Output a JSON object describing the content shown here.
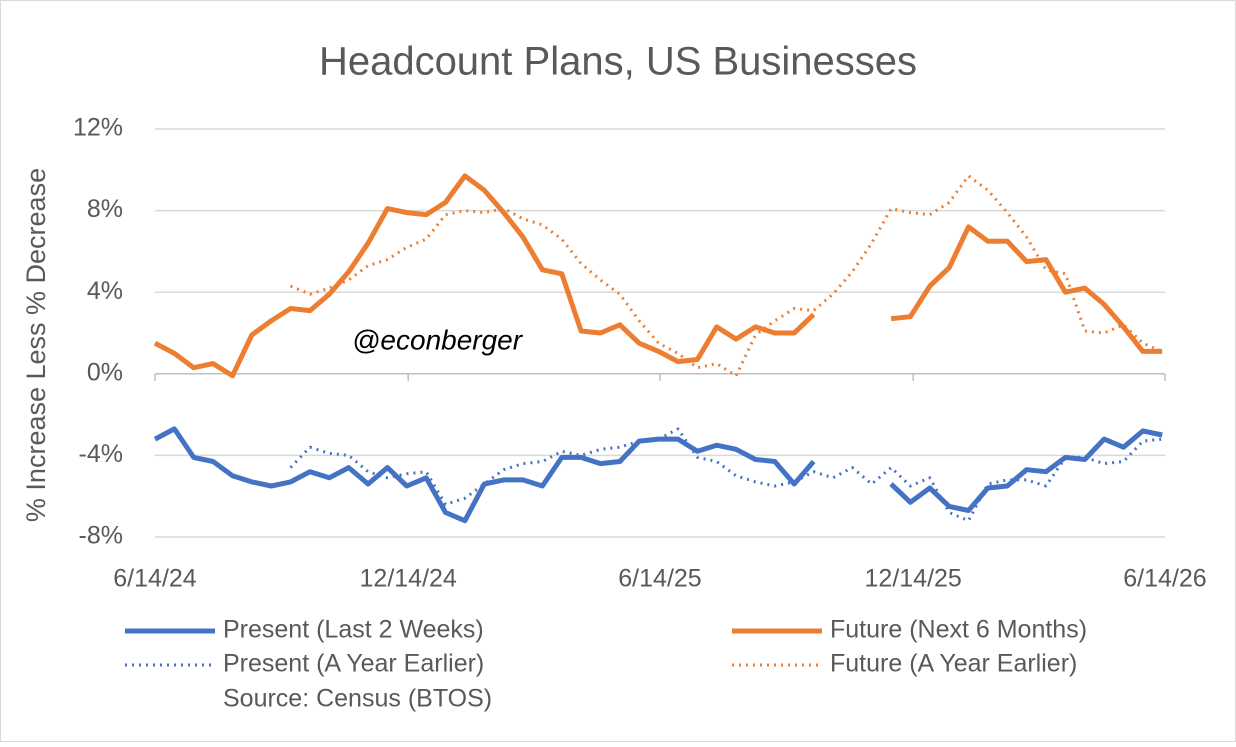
{
  "chart_data": {
    "type": "line",
    "title": "Headcount Plans, US Businesses",
    "y_label": "% Increase Less % Decrease",
    "annotation": "@econberger",
    "source": "Source: Census (BTOS)",
    "ylim": [
      -8,
      12
    ],
    "yticks": [
      {
        "value": -8,
        "label": "-8%"
      },
      {
        "value": -4,
        "label": "-4%"
      },
      {
        "value": 0,
        "label": "0%"
      },
      {
        "value": 4,
        "label": "4%"
      },
      {
        "value": 8,
        "label": "8%"
      },
      {
        "value": 12,
        "label": "12%"
      }
    ],
    "xlim": [
      "2024-06-14",
      "2026-06-14"
    ],
    "xticks": [
      {
        "value": "2024-06-14",
        "label": "6/14/24"
      },
      {
        "value": "2024-12-14",
        "label": "12/14/24"
      },
      {
        "value": "2025-06-14",
        "label": "6/14/25"
      },
      {
        "value": "2025-12-14",
        "label": "12/14/25"
      },
      {
        "value": "2026-06-14",
        "label": "6/14/26"
      }
    ],
    "grid": true,
    "x": [
      "2024-06-14",
      "2024-06-28",
      "2024-07-12",
      "2024-07-26",
      "2024-08-09",
      "2024-08-23",
      "2024-09-06",
      "2024-09-20",
      "2024-10-04",
      "2024-10-18",
      "2024-11-01",
      "2024-11-15",
      "2024-11-29",
      "2024-12-13",
      "2024-12-27",
      "2025-01-10",
      "2025-01-24",
      "2025-02-07",
      "2025-02-21",
      "2025-03-07",
      "2025-03-21",
      "2025-04-04",
      "2025-04-18",
      "2025-05-02",
      "2025-05-16",
      "2025-05-30",
      "2025-06-13",
      "2025-06-27",
      "2025-07-11",
      "2025-07-25",
      "2025-08-08",
      "2025-08-22",
      "2025-09-05",
      "2025-09-19",
      "2025-10-03",
      "2025-10-17",
      "2025-10-31",
      "2025-11-14",
      "2025-11-28",
      "2025-12-12",
      "2025-12-26",
      "2026-01-09",
      "2026-01-23",
      "2026-02-06",
      "2026-02-20",
      "2026-03-06",
      "2026-03-20",
      "2026-04-03",
      "2026-04-17",
      "2026-05-01",
      "2026-05-15",
      "2026-05-29",
      "2026-06-12"
    ],
    "series": [
      {
        "name": "Present (Last 2 Weeks)",
        "color": "#4472c4",
        "line_style": "solid",
        "values": [
          -3.2,
          -2.7,
          -4.1,
          -4.3,
          -5.0,
          -5.3,
          -5.5,
          -5.3,
          -4.8,
          -5.1,
          -4.6,
          -5.4,
          -4.6,
          -5.5,
          -5.1,
          -6.8,
          -7.2,
          -5.4,
          -5.2,
          -5.2,
          -5.5,
          -4.1,
          -4.1,
          -4.4,
          -4.3,
          -3.3,
          -3.2,
          -3.2,
          -3.8,
          -3.5,
          -3.7,
          -4.2,
          -4.3,
          -5.4,
          -4.3,
          null,
          null,
          null,
          -5.4,
          -6.3,
          -5.6,
          -6.5,
          -6.7,
          -5.6,
          -5.5,
          -4.7,
          -4.8,
          -4.1,
          -4.2,
          -3.2,
          -3.6,
          -2.8,
          -3.0
        ]
      },
      {
        "name": "Future (Next 6 Months)",
        "color": "#ed7d31",
        "line_style": "solid",
        "values": [
          1.5,
          1.0,
          0.3,
          0.5,
          -0.1,
          1.9,
          2.6,
          3.2,
          3.1,
          3.9,
          5.0,
          6.4,
          8.1,
          7.9,
          7.8,
          8.4,
          9.7,
          9.0,
          7.9,
          6.7,
          5.1,
          4.9,
          2.1,
          2.0,
          2.4,
          1.5,
          1.1,
          0.6,
          0.7,
          2.3,
          1.7,
          2.3,
          2.0,
          2.0,
          2.9,
          null,
          null,
          null,
          2.7,
          2.8,
          4.3,
          5.2,
          7.2,
          6.5,
          6.5,
          5.5,
          5.6,
          4.0,
          4.2,
          3.4,
          2.3,
          1.1,
          1.1
        ]
      },
      {
        "name": "Present (A Year Earlier)",
        "color": "#4472c4",
        "line_style": "dotted",
        "values": [
          null,
          null,
          null,
          null,
          null,
          null,
          null,
          -4.6,
          -3.6,
          -3.9,
          -4.0,
          -4.8,
          -5.1,
          -4.9,
          -4.8,
          -6.4,
          -6.1,
          -5.4,
          -4.7,
          -4.4,
          -4.3,
          -3.8,
          -4.0,
          -3.7,
          -3.6,
          -3.3,
          -3.2,
          -2.7,
          -4.1,
          -4.3,
          -5.0,
          -5.3,
          -5.5,
          -5.3,
          -4.8,
          -5.1,
          -4.6,
          -5.4,
          -4.6,
          -5.5,
          -5.1,
          -6.8,
          -7.2,
          -5.4,
          -5.2,
          -5.2,
          -5.5,
          -4.1,
          -4.1,
          -4.4,
          -4.3,
          -3.3,
          -3.2
        ]
      },
      {
        "name": "Future (A Year Earlier)",
        "color": "#ed7d31",
        "line_style": "dotted",
        "values": [
          null,
          null,
          null,
          null,
          null,
          null,
          null,
          4.3,
          3.9,
          4.2,
          4.6,
          5.3,
          5.6,
          6.2,
          6.6,
          7.8,
          8.0,
          7.9,
          8.1,
          7.6,
          7.3,
          6.6,
          5.4,
          4.6,
          3.9,
          2.6,
          1.5,
          1.0,
          0.3,
          0.5,
          -0.1,
          1.9,
          2.6,
          3.2,
          3.1,
          3.9,
          5.0,
          6.4,
          8.1,
          7.9,
          7.8,
          8.4,
          9.7,
          9.0,
          7.9,
          6.7,
          5.1,
          4.9,
          2.1,
          2.0,
          2.4,
          1.5,
          1.1
        ]
      }
    ]
  }
}
